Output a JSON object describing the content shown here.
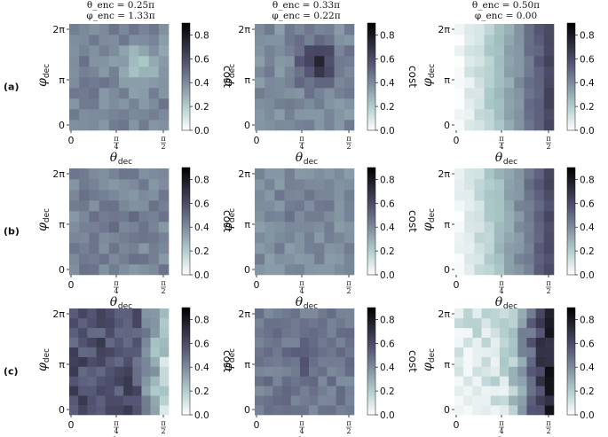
{
  "chart_data": {
    "type": "heatmap",
    "columns": [
      {
        "title_line1": "θ_enc = 0.25π",
        "title_line2": "φ_enc = 1.33π"
      },
      {
        "title_line1": "θ_enc = 0.33π",
        "title_line2": "φ_enc = 0.22π"
      },
      {
        "title_line1": "θ_enc = 0.50π",
        "title_line2": "φ_enc = 0.00"
      }
    ],
    "row_labels": [
      "(a)",
      "(b)",
      "(c)"
    ],
    "xlabel": "θ_dec",
    "ylabel": "φ_dec",
    "xticks": [
      "0",
      "π/4",
      "π/2"
    ],
    "yticks": [
      "0",
      "π",
      "2π"
    ],
    "xlim": [
      0,
      1.5708
    ],
    "ylim": [
      0,
      6.2832
    ],
    "colorbar": {
      "label": "cost",
      "ticks": [
        "0.0",
        "0.2",
        "0.4",
        "0.6",
        "0.8"
      ],
      "range": [
        0,
        0.9
      ],
      "colormap": "bone_r"
    },
    "panels": [
      {
        "row": 0,
        "col": 0,
        "grid": 10,
        "base": 0.42,
        "peak_x": 0.75,
        "peak_y": 0.62,
        "peak_amp": -0.18,
        "seed": 11
      },
      {
        "row": 0,
        "col": 1,
        "grid": 10,
        "base": 0.4,
        "peak_x": 0.65,
        "peak_y": 0.62,
        "peak_amp": 0.3,
        "seed": 23
      },
      {
        "row": 0,
        "col": 2,
        "grid": 10,
        "mode": "theta_ramp",
        "seed": 37
      },
      {
        "row": 1,
        "col": 0,
        "grid": 10,
        "base": 0.42,
        "peak_x": 0.5,
        "peak_y": 0.5,
        "peak_amp": 0.04,
        "seed": 41
      },
      {
        "row": 1,
        "col": 1,
        "grid": 10,
        "base": 0.4,
        "peak_x": 0.5,
        "peak_y": 0.5,
        "peak_amp": 0.06,
        "seed": 53
      },
      {
        "row": 1,
        "col": 2,
        "grid": 10,
        "mode": "theta_ramp",
        "seed": 67
      },
      {
        "row": 2,
        "col": 0,
        "grid": 11,
        "mode": "left_high",
        "seed": 71
      },
      {
        "row": 2,
        "col": 1,
        "grid": 11,
        "base": 0.45,
        "peak_x": 0.5,
        "peak_y": 0.5,
        "peak_amp": 0.08,
        "seed": 83
      },
      {
        "row": 2,
        "col": 2,
        "grid": 11,
        "mode": "right_high",
        "seed": 97
      }
    ]
  }
}
